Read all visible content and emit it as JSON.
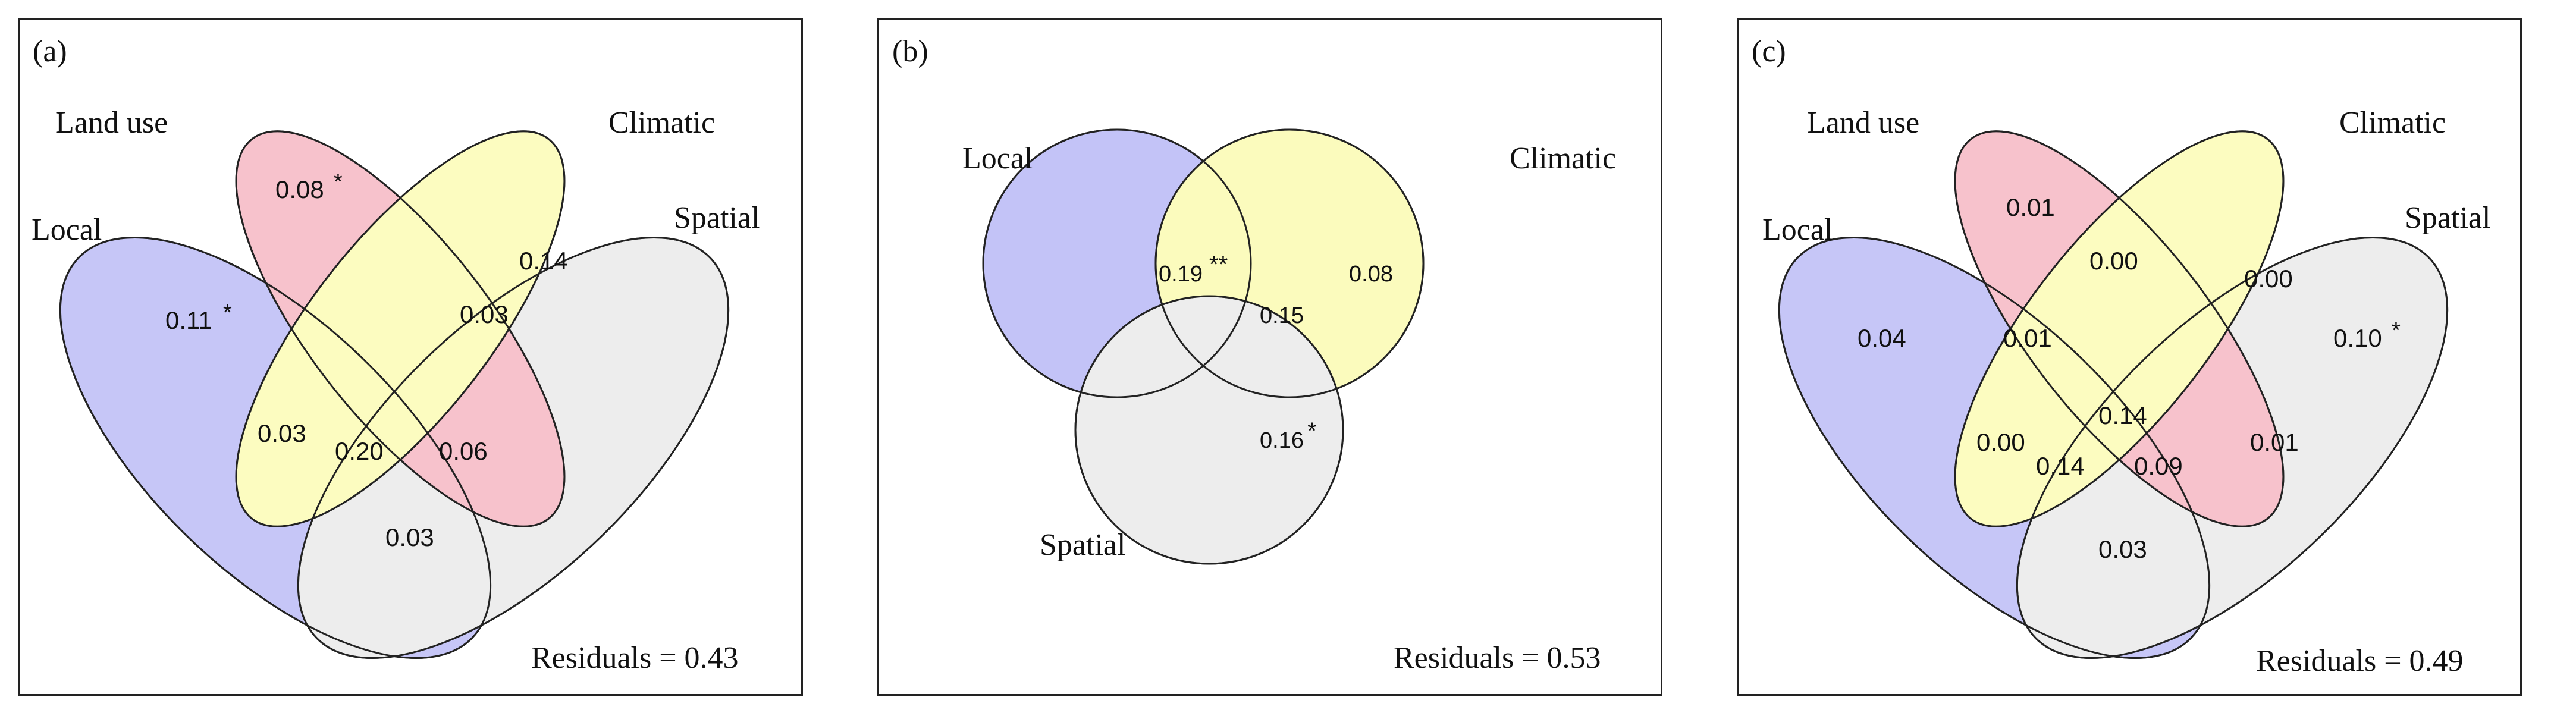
{
  "colors": {
    "local": "#b3b3f5",
    "landuse": "#f5aebb",
    "climatic": "#fbfbab",
    "spatial": "#eeeeee",
    "outline": "#222222"
  },
  "panels": [
    {
      "id": "a",
      "tag": "(a)",
      "sets": {
        "landuse": "Land use",
        "local": "Local",
        "climatic": "Climatic",
        "spatial": "Spatial"
      },
      "values": {
        "landuse": "0.08",
        "landuse_star": "*",
        "local": "0.11",
        "local_star": "*",
        "climatic_spatial": "0.14",
        "core_right": "0.03",
        "left_lower": "0.03",
        "center": "0.20",
        "right_lower": "0.06",
        "bottom": "0.03"
      },
      "residuals": "Residuals = 0.43"
    },
    {
      "id": "b",
      "tag": "(b)",
      "sets": {
        "local": "Local",
        "climatic": "Climatic",
        "spatial": "Spatial"
      },
      "values": {
        "local": "0.19",
        "local_star": "**",
        "local_climatic": "0.15",
        "climatic": "0.08",
        "spatial": "0.16",
        "spatial_star": "*"
      },
      "residuals": "Residuals = 0.53"
    },
    {
      "id": "c",
      "tag": "(c)",
      "sets": {
        "landuse": "Land use",
        "local": "Local",
        "climatic": "Climatic",
        "spatial": "Spatial"
      },
      "values": {
        "landuse": "0.01",
        "landuse_climatic": "0.00",
        "climatic_spatial": "0.00",
        "local": "0.04",
        "upper_left": "0.01",
        "spatial": "0.10",
        "spatial_star": "*",
        "left_lower": "0.00",
        "center": "0.14",
        "right_lower": "0.01",
        "lower_left": "0.14",
        "lower_right": "0.09",
        "bottom": "0.03"
      },
      "residuals": "Residuals = 0.49"
    }
  ]
}
